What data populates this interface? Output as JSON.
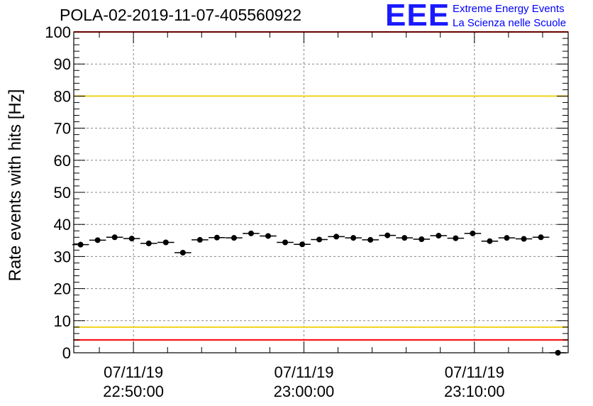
{
  "header": {
    "title": "POLA-02-2019-11-07-405560922",
    "logo_text": "EEE",
    "logo_line1": "Extreme Energy Events",
    "logo_line2": "La Scienza nelle Scuole"
  },
  "colors": {
    "points": "#000000",
    "yellow_line": "#f2d21b",
    "red_line": "#ff0000",
    "grid": "#888888"
  },
  "chart_data": {
    "type": "scatter",
    "title": "POLA-02-2019-11-07-405560922",
    "ylabel": "Rate events with hits [Hz]",
    "xlabel": "",
    "ylim": [
      0,
      100
    ],
    "yticks": [
      0,
      10,
      20,
      30,
      40,
      50,
      60,
      70,
      80,
      90,
      100
    ],
    "xlim_minutes": [
      -3.5,
      25.5
    ],
    "xticks": [
      {
        "minutes": 0,
        "date": "07/11/19",
        "time": "22:50:00"
      },
      {
        "minutes": 10,
        "date": "07/11/19",
        "time": "23:00:00"
      },
      {
        "minutes": 20,
        "date": "07/11/19",
        "time": "23:10:00"
      }
    ],
    "bin_width_minutes": 0.98,
    "x_minutes": [
      -3.1,
      -2.1,
      -1.1,
      -0.1,
      0.9,
      1.9,
      2.9,
      3.9,
      4.9,
      5.9,
      6.9,
      7.9,
      8.9,
      9.9,
      10.9,
      11.9,
      12.9,
      13.9,
      14.9,
      15.9,
      16.9,
      17.9,
      18.9,
      19.9,
      20.9,
      21.9,
      22.9,
      23.9,
      24.9
    ],
    "values": [
      33.7,
      35.1,
      36.0,
      35.6,
      34.1,
      34.4,
      31.2,
      35.2,
      35.9,
      35.8,
      37.2,
      36.4,
      34.4,
      33.8,
      35.3,
      36.2,
      35.8,
      35.2,
      36.6,
      35.8,
      35.4,
      36.5,
      35.7,
      37.2,
      34.8,
      35.8,
      35.5,
      36.0,
      0
    ],
    "reference_lines": [
      {
        "value": 80,
        "color": "yellow"
      },
      {
        "value": 8,
        "color": "yellow"
      },
      {
        "value": 4,
        "color": "red"
      },
      {
        "value": 100,
        "color": "red"
      }
    ]
  }
}
